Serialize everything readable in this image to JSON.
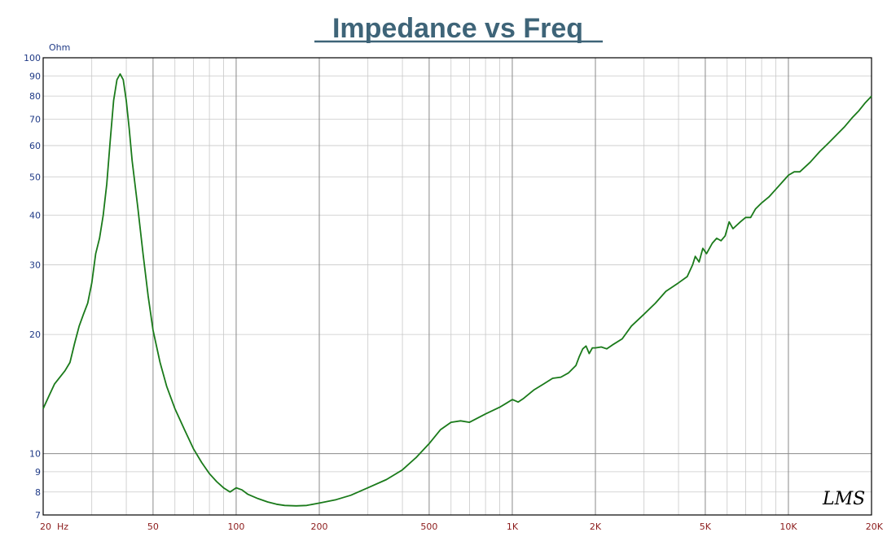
{
  "chart_data": {
    "type": "line",
    "title": "Impedance vs Freq",
    "ylabel": "Ohm",
    "xscale": "log",
    "yscale": "log",
    "xlim": [
      20,
      20000
    ],
    "ylim": [
      7,
      100
    ],
    "grid": true,
    "logo": "LMS",
    "x_tick_labels": [
      {
        "value": 20,
        "label": "20  Hz"
      },
      {
        "value": 50,
        "label": "50"
      },
      {
        "value": 100,
        "label": "100"
      },
      {
        "value": 200,
        "label": "200"
      },
      {
        "value": 500,
        "label": "500"
      },
      {
        "value": 1000,
        "label": "1K"
      },
      {
        "value": 2000,
        "label": "2K"
      },
      {
        "value": 5000,
        "label": "5K"
      },
      {
        "value": 10000,
        "label": "10K"
      },
      {
        "value": 20000,
        "label": "20K"
      }
    ],
    "y_tick_labels": [
      {
        "value": 7,
        "label": "7"
      },
      {
        "value": 8,
        "label": "8"
      },
      {
        "value": 9,
        "label": "9"
      },
      {
        "value": 10,
        "label": "10"
      },
      {
        "value": 20,
        "label": "20"
      },
      {
        "value": 30,
        "label": "30"
      },
      {
        "value": 40,
        "label": "40"
      },
      {
        "value": 50,
        "label": "50"
      },
      {
        "value": 60,
        "label": "60"
      },
      {
        "value": 70,
        "label": "70"
      },
      {
        "value": 80,
        "label": "80"
      },
      {
        "value": 90,
        "label": "90"
      },
      {
        "value": 100,
        "label": "100"
      }
    ],
    "series": [
      {
        "color": "#1a7a1a",
        "points": [
          [
            20,
            13.0
          ],
          [
            21,
            14.0
          ],
          [
            22,
            15.0
          ],
          [
            24,
            16.2
          ],
          [
            25,
            17.0
          ],
          [
            26,
            19.0
          ],
          [
            27,
            21.0
          ],
          [
            28,
            22.5
          ],
          [
            29,
            24.0
          ],
          [
            30,
            27.0
          ],
          [
            31,
            32.0
          ],
          [
            32,
            35.0
          ],
          [
            33,
            40.0
          ],
          [
            34,
            48.0
          ],
          [
            35,
            62.0
          ],
          [
            36,
            78.0
          ],
          [
            37,
            88.0
          ],
          [
            38,
            91.0
          ],
          [
            39,
            88.0
          ],
          [
            40,
            78.0
          ],
          [
            41,
            66.0
          ],
          [
            42,
            55.0
          ],
          [
            44,
            42.0
          ],
          [
            46,
            32.0
          ],
          [
            48,
            25.0
          ],
          [
            50,
            20.5
          ],
          [
            53,
            17.0
          ],
          [
            56,
            14.8
          ],
          [
            60,
            13.0
          ],
          [
            65,
            11.5
          ],
          [
            70,
            10.3
          ],
          [
            75,
            9.5
          ],
          [
            80,
            8.9
          ],
          [
            85,
            8.5
          ],
          [
            90,
            8.2
          ],
          [
            95,
            8.0
          ],
          [
            100,
            8.2
          ],
          [
            105,
            8.1
          ],
          [
            110,
            7.9
          ],
          [
            120,
            7.7
          ],
          [
            130,
            7.55
          ],
          [
            140,
            7.45
          ],
          [
            150,
            7.4
          ],
          [
            165,
            7.38
          ],
          [
            180,
            7.4
          ],
          [
            200,
            7.5
          ],
          [
            230,
            7.65
          ],
          [
            260,
            7.85
          ],
          [
            300,
            8.2
          ],
          [
            350,
            8.6
          ],
          [
            400,
            9.1
          ],
          [
            450,
            9.8
          ],
          [
            500,
            10.6
          ],
          [
            550,
            11.5
          ],
          [
            600,
            12.0
          ],
          [
            650,
            12.1
          ],
          [
            700,
            12.0
          ],
          [
            800,
            12.6
          ],
          [
            900,
            13.1
          ],
          [
            950,
            13.4
          ],
          [
            1000,
            13.7
          ],
          [
            1050,
            13.5
          ],
          [
            1100,
            13.8
          ],
          [
            1200,
            14.5
          ],
          [
            1300,
            15.0
          ],
          [
            1400,
            15.5
          ],
          [
            1500,
            15.6
          ],
          [
            1600,
            16.0
          ],
          [
            1700,
            16.7
          ],
          [
            1750,
            17.6
          ],
          [
            1800,
            18.4
          ],
          [
            1850,
            18.7
          ],
          [
            1900,
            17.9
          ],
          [
            1950,
            18.5
          ],
          [
            2000,
            18.5
          ],
          [
            2100,
            18.6
          ],
          [
            2200,
            18.4
          ],
          [
            2300,
            18.8
          ],
          [
            2500,
            19.5
          ],
          [
            2700,
            21.0
          ],
          [
            3000,
            22.5
          ],
          [
            3300,
            24.0
          ],
          [
            3600,
            25.7
          ],
          [
            4000,
            27.0
          ],
          [
            4300,
            28.0
          ],
          [
            4500,
            30.0
          ],
          [
            4600,
            31.5
          ],
          [
            4750,
            30.5
          ],
          [
            4900,
            33.0
          ],
          [
            5050,
            32.0
          ],
          [
            5300,
            34.0
          ],
          [
            5500,
            35.0
          ],
          [
            5700,
            34.5
          ],
          [
            5900,
            35.5
          ],
          [
            6100,
            38.5
          ],
          [
            6300,
            37.0
          ],
          [
            6700,
            38.5
          ],
          [
            7000,
            39.5
          ],
          [
            7300,
            39.5
          ],
          [
            7600,
            41.5
          ],
          [
            8000,
            43.0
          ],
          [
            8500,
            44.5
          ],
          [
            9000,
            46.5
          ],
          [
            9500,
            48.5
          ],
          [
            10000,
            50.5
          ],
          [
            10500,
            51.5
          ],
          [
            11000,
            51.5
          ],
          [
            12000,
            54.5
          ],
          [
            13000,
            58.0
          ],
          [
            14000,
            61.0
          ],
          [
            15000,
            64.0
          ],
          [
            16000,
            67.0
          ],
          [
            17000,
            70.5
          ],
          [
            18000,
            73.5
          ],
          [
            19000,
            77.0
          ],
          [
            20000,
            80.0
          ]
        ]
      }
    ]
  }
}
